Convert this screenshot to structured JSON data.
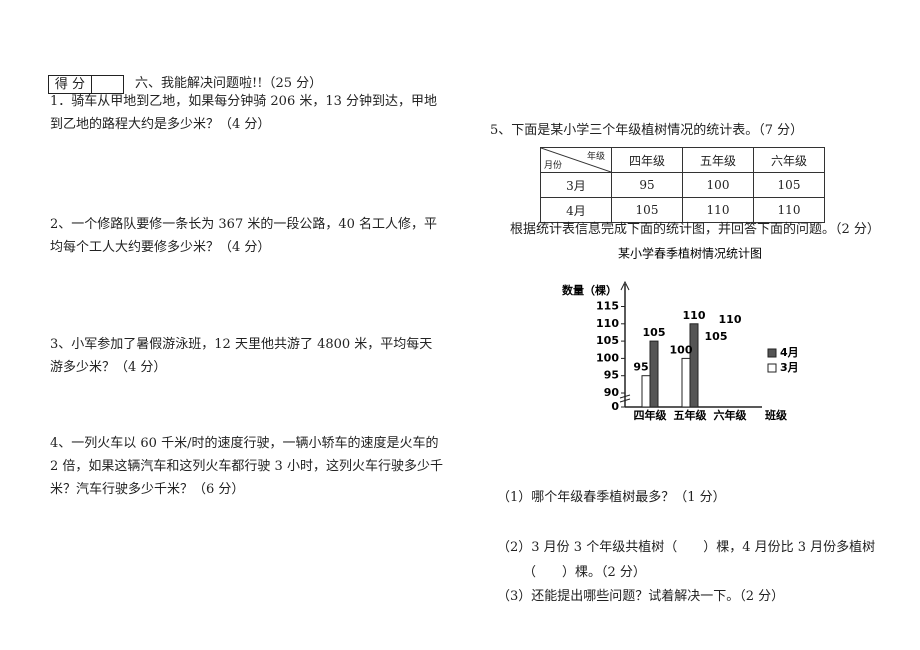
{
  "score_box": {
    "label": "得 分"
  },
  "section": {
    "title": "六、我能解决问题啦!!（25 分）"
  },
  "questions": [
    "1．骑车从甲地到乙地，如果每分钟骑 206 米，13 分钟到达，甲地到乙地的路程大约是多少米？（4 分）",
    "2、一个修路队要修一条长为 367 米的一段公路，40 名工人修，平均每个工人大约要修多少米？（4 分）",
    "3、小军参加了暑假游泳班，12 天里他共游了 4800 米，平均每天游多少米？（4 分）",
    "4、一列火车以 60 千米/时的速度行驶，一辆小轿车的速度是火车的 2 倍，如果这辆汽车和这列火车都行驶 3 小时，这列火车行驶多少千米？汽车行驶多少千米？（6 分）"
  ],
  "question5": {
    "intro": "5、下面是某小学三个年级植树情况的统计表。（7 分）",
    "table": {
      "corner_top": "年级",
      "corner_bottom": "月份",
      "columns": [
        "四年级",
        "五年级",
        "六年级"
      ],
      "rows": [
        [
          "3月",
          95,
          100,
          105
        ],
        [
          "4月",
          105,
          110,
          110
        ]
      ]
    },
    "instruction": "根据统计表信息完成下面的统计图，并回答下面的问题。（2 分）",
    "chart": {
      "type": "bar",
      "title": "某小学春季植树情况统计图",
      "y_label": "数量（棵）",
      "x_label": "班级",
      "categories": [
        "四年级",
        "五年级",
        "六年级"
      ],
      "series": [
        {
          "name": "4月",
          "color": "#555555",
          "values": [
            105,
            110,
            null
          ]
        },
        {
          "name": "3月",
          "color": "#ffffff",
          "values": [
            95,
            100,
            null
          ]
        }
      ],
      "ylim": [
        0,
        115
      ],
      "yticks": [
        0,
        90,
        95,
        100,
        105,
        110,
        115
      ],
      "annotations": [
        "110",
        "105"
      ]
    },
    "subquestions": [
      "（1）哪个年级春季植树最多？（1 分）",
      "（2）3 月份 3 个年级共植树（　　）棵，4 月份比 3 月份多植树（　　）棵。（2 分）",
      "（3）还能提出哪些问题？试着解决一下。（2 分）"
    ]
  }
}
